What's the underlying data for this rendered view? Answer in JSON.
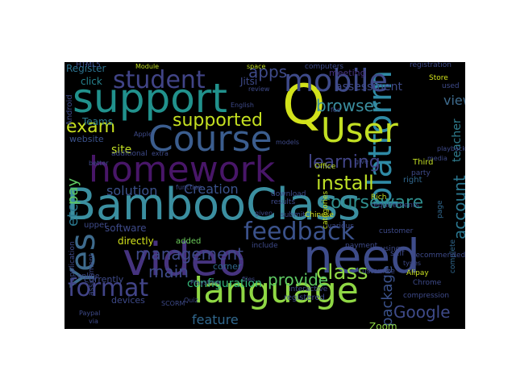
{
  "words": [
    {
      "text": "BambooClass",
      "color": "#3b8fa0"
    },
    {
      "text": "platform",
      "color": "#2f8aa5"
    },
    {
      "text": "video",
      "color": "#46337f"
    },
    {
      "text": "need",
      "color": "#3e4c8a"
    },
    {
      "text": "language",
      "color": "#8fd744"
    },
    {
      "text": "homework",
      "color": "#481668"
    },
    {
      "text": "support",
      "color": "#21918c"
    },
    {
      "text": "Course",
      "color": "#3b5d8e"
    },
    {
      "text": "Q",
      "color": "#d2e21b"
    },
    {
      "text": "User",
      "color": "#c2df23"
    },
    {
      "text": "mobile",
      "color": "#3e4a89"
    },
    {
      "text": "Yes",
      "color": "#3e6b8d"
    },
    {
      "text": "student",
      "color": "#414487"
    },
    {
      "text": "feedback",
      "color": "#3b528b"
    },
    {
      "text": "format",
      "color": "#414487"
    },
    {
      "text": "class",
      "color": "#8fd744"
    },
    {
      "text": "install",
      "color": "#bddf26"
    },
    {
      "text": "Google",
      "color": "#3e4a89"
    },
    {
      "text": "management",
      "color": "#3e4a89"
    },
    {
      "text": "learning",
      "color": "#414487"
    },
    {
      "text": "supported",
      "color": "#c5e021"
    },
    {
      "text": "courseware",
      "color": "#2f8e8d"
    },
    {
      "text": "browser",
      "color": "#3b8fa0"
    },
    {
      "text": "apps",
      "color": "#3e4a89"
    },
    {
      "text": "exam",
      "color": "#c8e020"
    },
    {
      "text": "account",
      "color": "#2a768e"
    },
    {
      "text": "teacher",
      "color": "#2f7d8e"
    },
    {
      "text": "package",
      "color": "#3b528b"
    },
    {
      "text": "provide",
      "color": "#5ec962"
    },
    {
      "text": "main",
      "color": "#3e4a89"
    },
    {
      "text": "etc",
      "color": "#2a788e"
    },
    {
      "text": "pay",
      "color": "#5ec962"
    },
    {
      "text": "view",
      "color": "#3e6b8d"
    },
    {
      "text": "feature",
      "color": "#31688e"
    },
    {
      "text": "assessment",
      "color": "#3e4a89"
    },
    {
      "text": "configuration",
      "color": "#35b779"
    },
    {
      "text": "solution",
      "color": "#3b528b"
    },
    {
      "text": "Creation",
      "color": "#3b528b"
    },
    {
      "text": "site",
      "color": "#c2df23"
    },
    {
      "text": "Register",
      "color": "#2c728e"
    },
    {
      "text": "click",
      "color": "#26828e"
    },
    {
      "text": "Teams",
      "color": "#2a788e"
    },
    {
      "text": "website",
      "color": "#3b528b"
    },
    {
      "text": "Jitsi",
      "color": "#3e4a89"
    },
    {
      "text": "meeting",
      "color": "#46337f"
    },
    {
      "text": "registration",
      "color": "#3e4a89"
    },
    {
      "text": "Zoom",
      "color": "#8fd744"
    },
    {
      "text": "corner",
      "color": "#31688e"
    },
    {
      "text": "directly",
      "color": "#d2e21b"
    },
    {
      "text": "added",
      "color": "#6ccd5a"
    },
    {
      "text": "upper",
      "color": "#3e4a89"
    },
    {
      "text": "self",
      "color": "#3e4a89"
    },
    {
      "text": "right",
      "color": "#31688e"
    },
    {
      "text": "Third",
      "color": "#c2df23"
    },
    {
      "text": "party",
      "color": "#3e4a89"
    },
    {
      "text": "page",
      "color": "#31688e"
    },
    {
      "text": "Store",
      "color": "#d2e21b"
    },
    {
      "text": "used",
      "color": "#3e4a89"
    },
    {
      "text": "Office",
      "color": "#bddf26"
    },
    {
      "text": "Chinese",
      "color": "#d2e21b"
    },
    {
      "text": "Rich",
      "color": "#c2df23"
    },
    {
      "text": "types",
      "color": "#3e4a89"
    },
    {
      "text": "Alipay",
      "color": "#c8e020"
    },
    {
      "text": "Chrome",
      "color": "#3e4a89"
    },
    {
      "text": "compression",
      "color": "#3e4a89"
    },
    {
      "text": "complete",
      "color": "#31688e"
    },
    {
      "text": "customize",
      "color": "#3e4a89"
    },
    {
      "text": "registered",
      "color": "#3e4a89"
    },
    {
      "text": "interactive",
      "color": "#3e4a89"
    },
    {
      "text": "currently",
      "color": "#3e4a89"
    },
    {
      "text": "devices",
      "color": "#3e4a89"
    },
    {
      "text": "software",
      "color": "#3e4a89"
    },
    {
      "text": "Apple",
      "color": "#3e4a89"
    },
    {
      "text": "additional",
      "color": "#3e4a89"
    },
    {
      "text": "extra",
      "color": "#3e4a89"
    },
    {
      "text": "Module",
      "color": "#c2df23"
    },
    {
      "text": "computers",
      "color": "#3e4a89"
    },
    {
      "text": "space",
      "color": "#c2df23"
    },
    {
      "text": "review",
      "color": "#3e4a89"
    },
    {
      "text": "Playstore",
      "color": "#3e4a89"
    },
    {
      "text": "function",
      "color": "#3e4a89"
    },
    {
      "text": "download",
      "color": "#3e4a89"
    },
    {
      "text": "results",
      "color": "#3e4a89"
    },
    {
      "text": "submit",
      "color": "#3e4a89"
    },
    {
      "text": "various",
      "color": "#3e4a89"
    },
    {
      "text": "categories",
      "color": "#c2df23"
    },
    {
      "text": "customer",
      "color": "#3e4a89"
    },
    {
      "text": "requirements",
      "color": "#3e4a89"
    },
    {
      "text": "recommended",
      "color": "#3e4a89"
    },
    {
      "text": "payment",
      "color": "#3e4a89"
    },
    {
      "text": "using",
      "color": "#3e4a89"
    },
    {
      "text": "include",
      "color": "#3e4a89"
    },
    {
      "text": "files",
      "color": "#3e4a89"
    },
    {
      "text": "Quiz",
      "color": "#3e4a89"
    },
    {
      "text": "SCORM",
      "color": "#3e4a89"
    },
    {
      "text": "Paypal",
      "color": "#3e4a89"
    },
    {
      "text": "via",
      "color": "#3e4a89"
    },
    {
      "text": "application",
      "color": "#3e4a89"
    },
    {
      "text": "better",
      "color": "#3e4a89"
    },
    {
      "text": "media",
      "color": "#3e4a89"
    },
    {
      "text": "playback",
      "color": "#3e4a89"
    },
    {
      "text": "given",
      "color": "#3e4a89"
    },
    {
      "text": "models",
      "color": "#3e4a89"
    },
    {
      "text": "give",
      "color": "#3e4a89"
    },
    {
      "text": "fee",
      "color": "#3e4a89"
    },
    {
      "text": "HTML5",
      "color": "#3e4a89"
    },
    {
      "text": "assignment",
      "color": "#3e4a89"
    },
    {
      "text": "online",
      "color": "#3e4a89"
    },
    {
      "text": "English",
      "color": "#3e4a89"
    },
    {
      "text": "Android",
      "color": "#3e4a89"
    }
  ]
}
